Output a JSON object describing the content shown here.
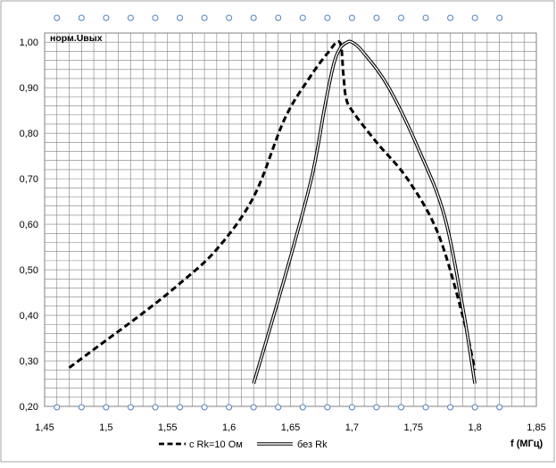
{
  "chart_data": {
    "type": "line",
    "ylabel": "норм.Uвых",
    "xlabel": "f (МГц)",
    "xlim": [
      1.45,
      1.85
    ],
    "ylim": [
      0.2,
      1.02
    ],
    "x_ticks": [
      "1,45",
      "1,5",
      "1,55",
      "1,6",
      "1,65",
      "1,7",
      "1,75",
      "1,8",
      "1,85"
    ],
    "y_ticks": [
      "0,20",
      "0,30",
      "0,40",
      "0,50",
      "0,60",
      "0,70",
      "0,80",
      "0,90",
      "1,00"
    ],
    "grid": true,
    "legend_position": "bottom",
    "series": [
      {
        "name": "с Rk=10 Ом",
        "style": "dashed",
        "color": "#000000",
        "points": [
          [
            1.47,
            0.285
          ],
          [
            1.5,
            0.345
          ],
          [
            1.53,
            0.405
          ],
          [
            1.56,
            0.47
          ],
          [
            1.59,
            0.545
          ],
          [
            1.62,
            0.66
          ],
          [
            1.645,
            0.83
          ],
          [
            1.665,
            0.92
          ],
          [
            1.68,
            0.975
          ],
          [
            1.69,
            1.0
          ],
          [
            1.693,
            0.93
          ],
          [
            1.695,
            0.88
          ],
          [
            1.7,
            0.85
          ],
          [
            1.72,
            0.78
          ],
          [
            1.745,
            0.7
          ],
          [
            1.77,
            0.58
          ],
          [
            1.79,
            0.4
          ],
          [
            1.8,
            0.28
          ]
        ]
      },
      {
        "name": "без Rk",
        "style": "double",
        "color": "#000000",
        "points": [
          [
            1.62,
            0.25
          ],
          [
            1.645,
            0.48
          ],
          [
            1.667,
            0.7
          ],
          [
            1.678,
            0.86
          ],
          [
            1.685,
            0.95
          ],
          [
            1.69,
            0.985
          ],
          [
            1.695,
            0.998
          ],
          [
            1.7,
            1.0
          ],
          [
            1.71,
            0.975
          ],
          [
            1.73,
            0.9
          ],
          [
            1.755,
            0.76
          ],
          [
            1.775,
            0.62
          ],
          [
            1.79,
            0.42
          ],
          [
            1.8,
            0.25
          ]
        ]
      }
    ]
  },
  "colors": {
    "background": "#ffffff",
    "frame": "#a6a6a6",
    "plot_border": "#808080",
    "grid": "#808080",
    "handle": "#4f81bd"
  }
}
